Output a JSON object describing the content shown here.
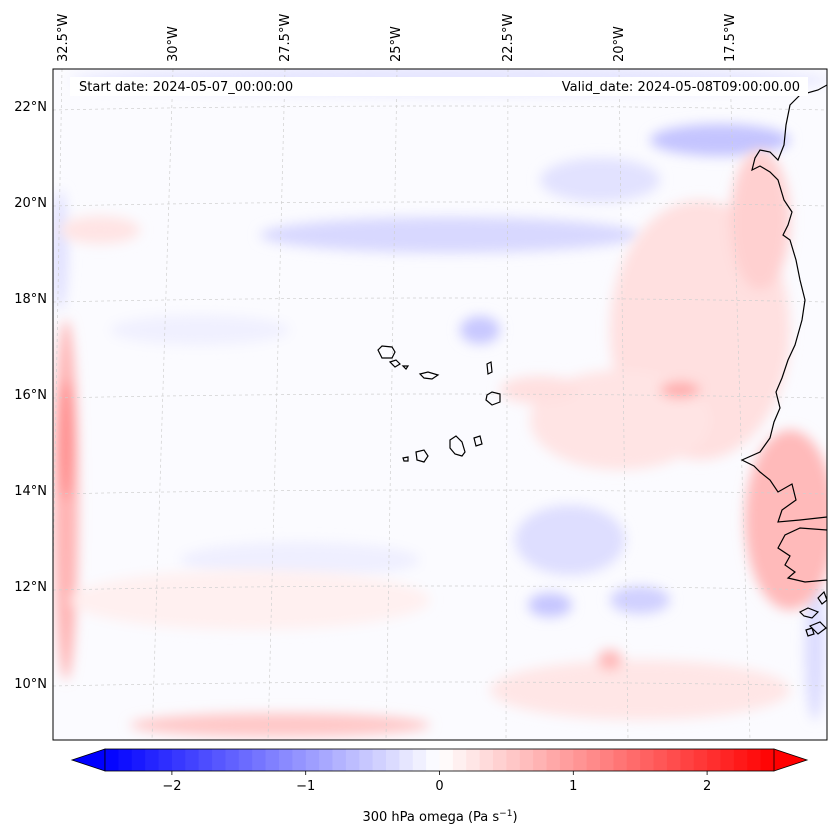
{
  "map": {
    "header": {
      "start_date": "Start date: 2024-05-07_00:00:00",
      "valid_date": "Valid_date: 2024-05-08T09:00:00.00"
    },
    "longitude_labels": [
      "32.5°W",
      "30°W",
      "27.5°W",
      "25°W",
      "22.5°W",
      "20°W",
      "17.5°W"
    ],
    "latitude_labels": [
      "22°N",
      "20°N",
      "18°N",
      "16°N",
      "14°N",
      "12°N",
      "10°N"
    ],
    "extent": {
      "lon_min": -32.8,
      "lon_max": -15.3,
      "lat_min": 9.0,
      "lat_max": 22.8
    },
    "gridlines": true,
    "colormap": "bwr",
    "colors": {
      "negative": "#0000ff",
      "zero": "#ffffff",
      "positive": "#ff0000",
      "coast": "#000000"
    }
  },
  "colorbar": {
    "ticks": [
      "−2",
      "−1",
      "0",
      "1",
      "2"
    ],
    "tick_values": [
      -2,
      -1,
      0,
      1,
      2
    ],
    "range": [
      -2.5,
      2.5
    ],
    "extend": "both",
    "label_main": "300 hPa omega (Pa s",
    "label_exp": "−1",
    "label_close": ")"
  }
}
